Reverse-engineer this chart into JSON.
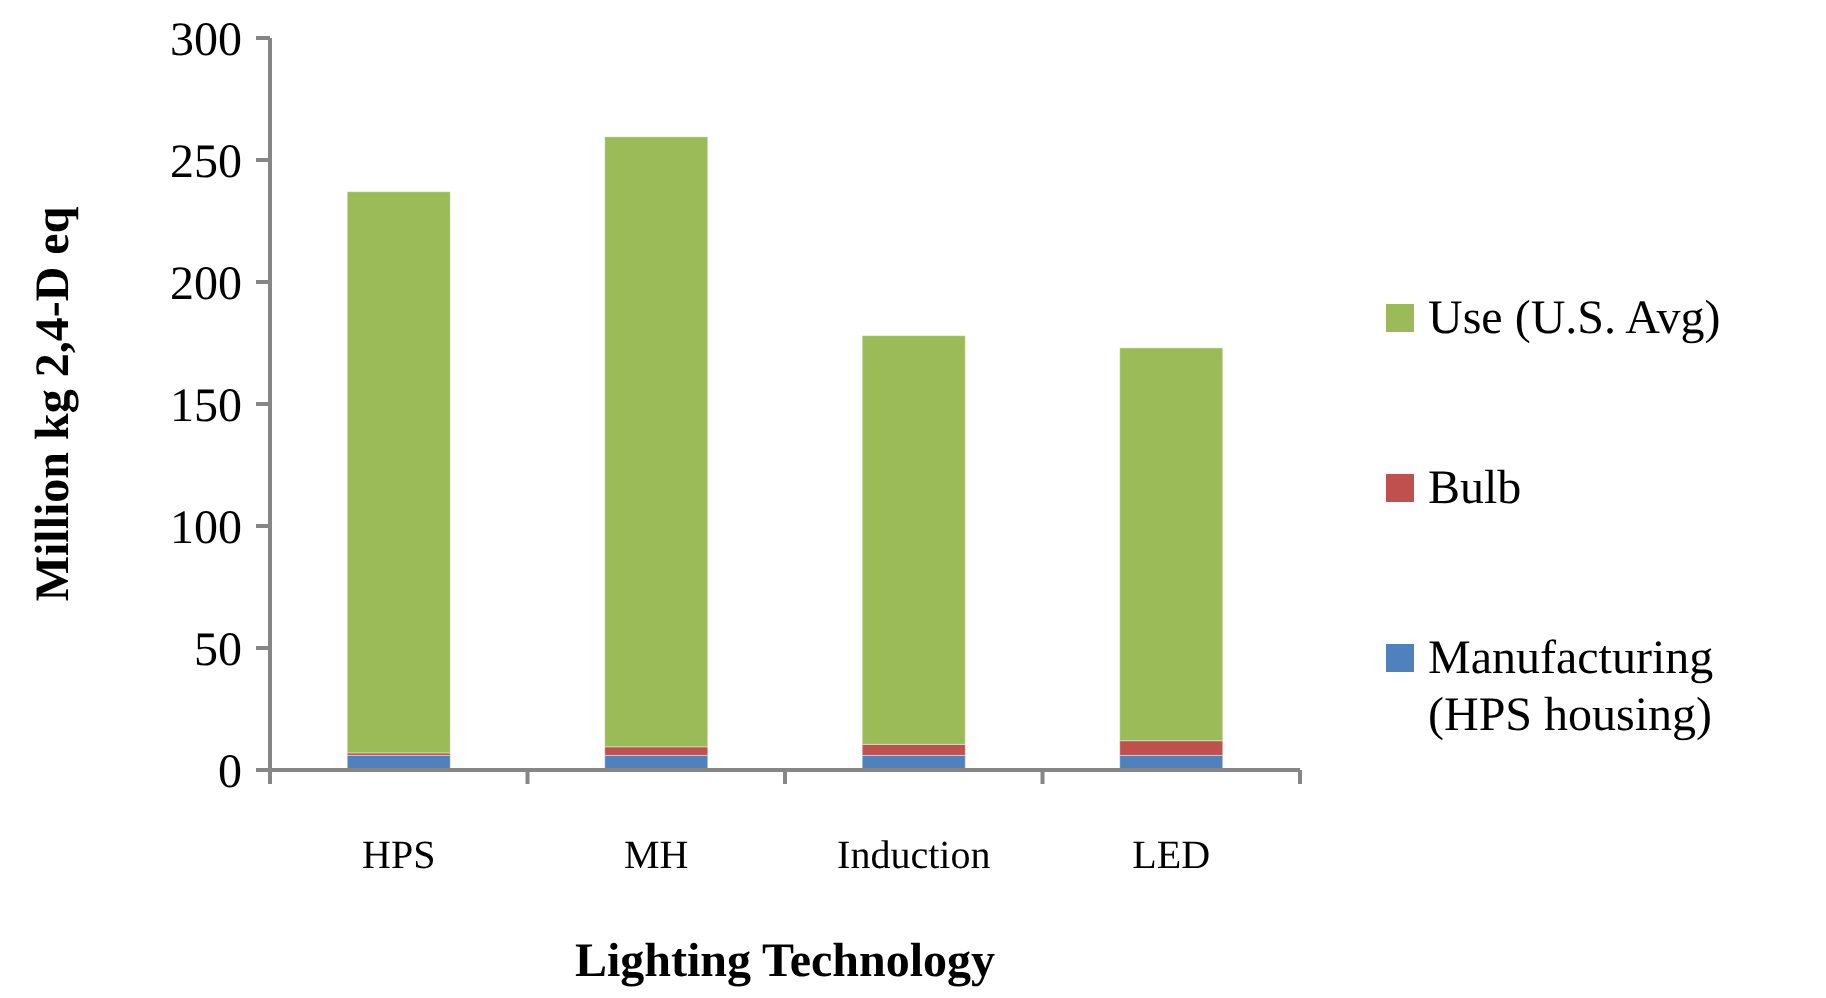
{
  "chart_data": {
    "type": "bar",
    "stacked": true,
    "xlabel": "Lighting Technology",
    "ylabel": "Million kg 2,4-D eq",
    "categories": [
      "HPS",
      "MH",
      "Induction",
      "LED"
    ],
    "series": [
      {
        "name": "Manufacturing (HPS housing)",
        "color": "#4f81bd",
        "values": [
          6,
          6,
          6,
          6
        ]
      },
      {
        "name": "Bulb",
        "color": "#c0504d",
        "values": [
          1,
          3.5,
          4.5,
          6
        ]
      },
      {
        "name": "Use (U.S. Avg)",
        "color": "#9bbb59",
        "values": [
          230,
          250,
          167.5,
          161
        ]
      }
    ],
    "ylim": [
      0,
      300
    ],
    "yticks": [
      0,
      50,
      100,
      150,
      200,
      250,
      300
    ],
    "grid": false,
    "legend": "right"
  }
}
